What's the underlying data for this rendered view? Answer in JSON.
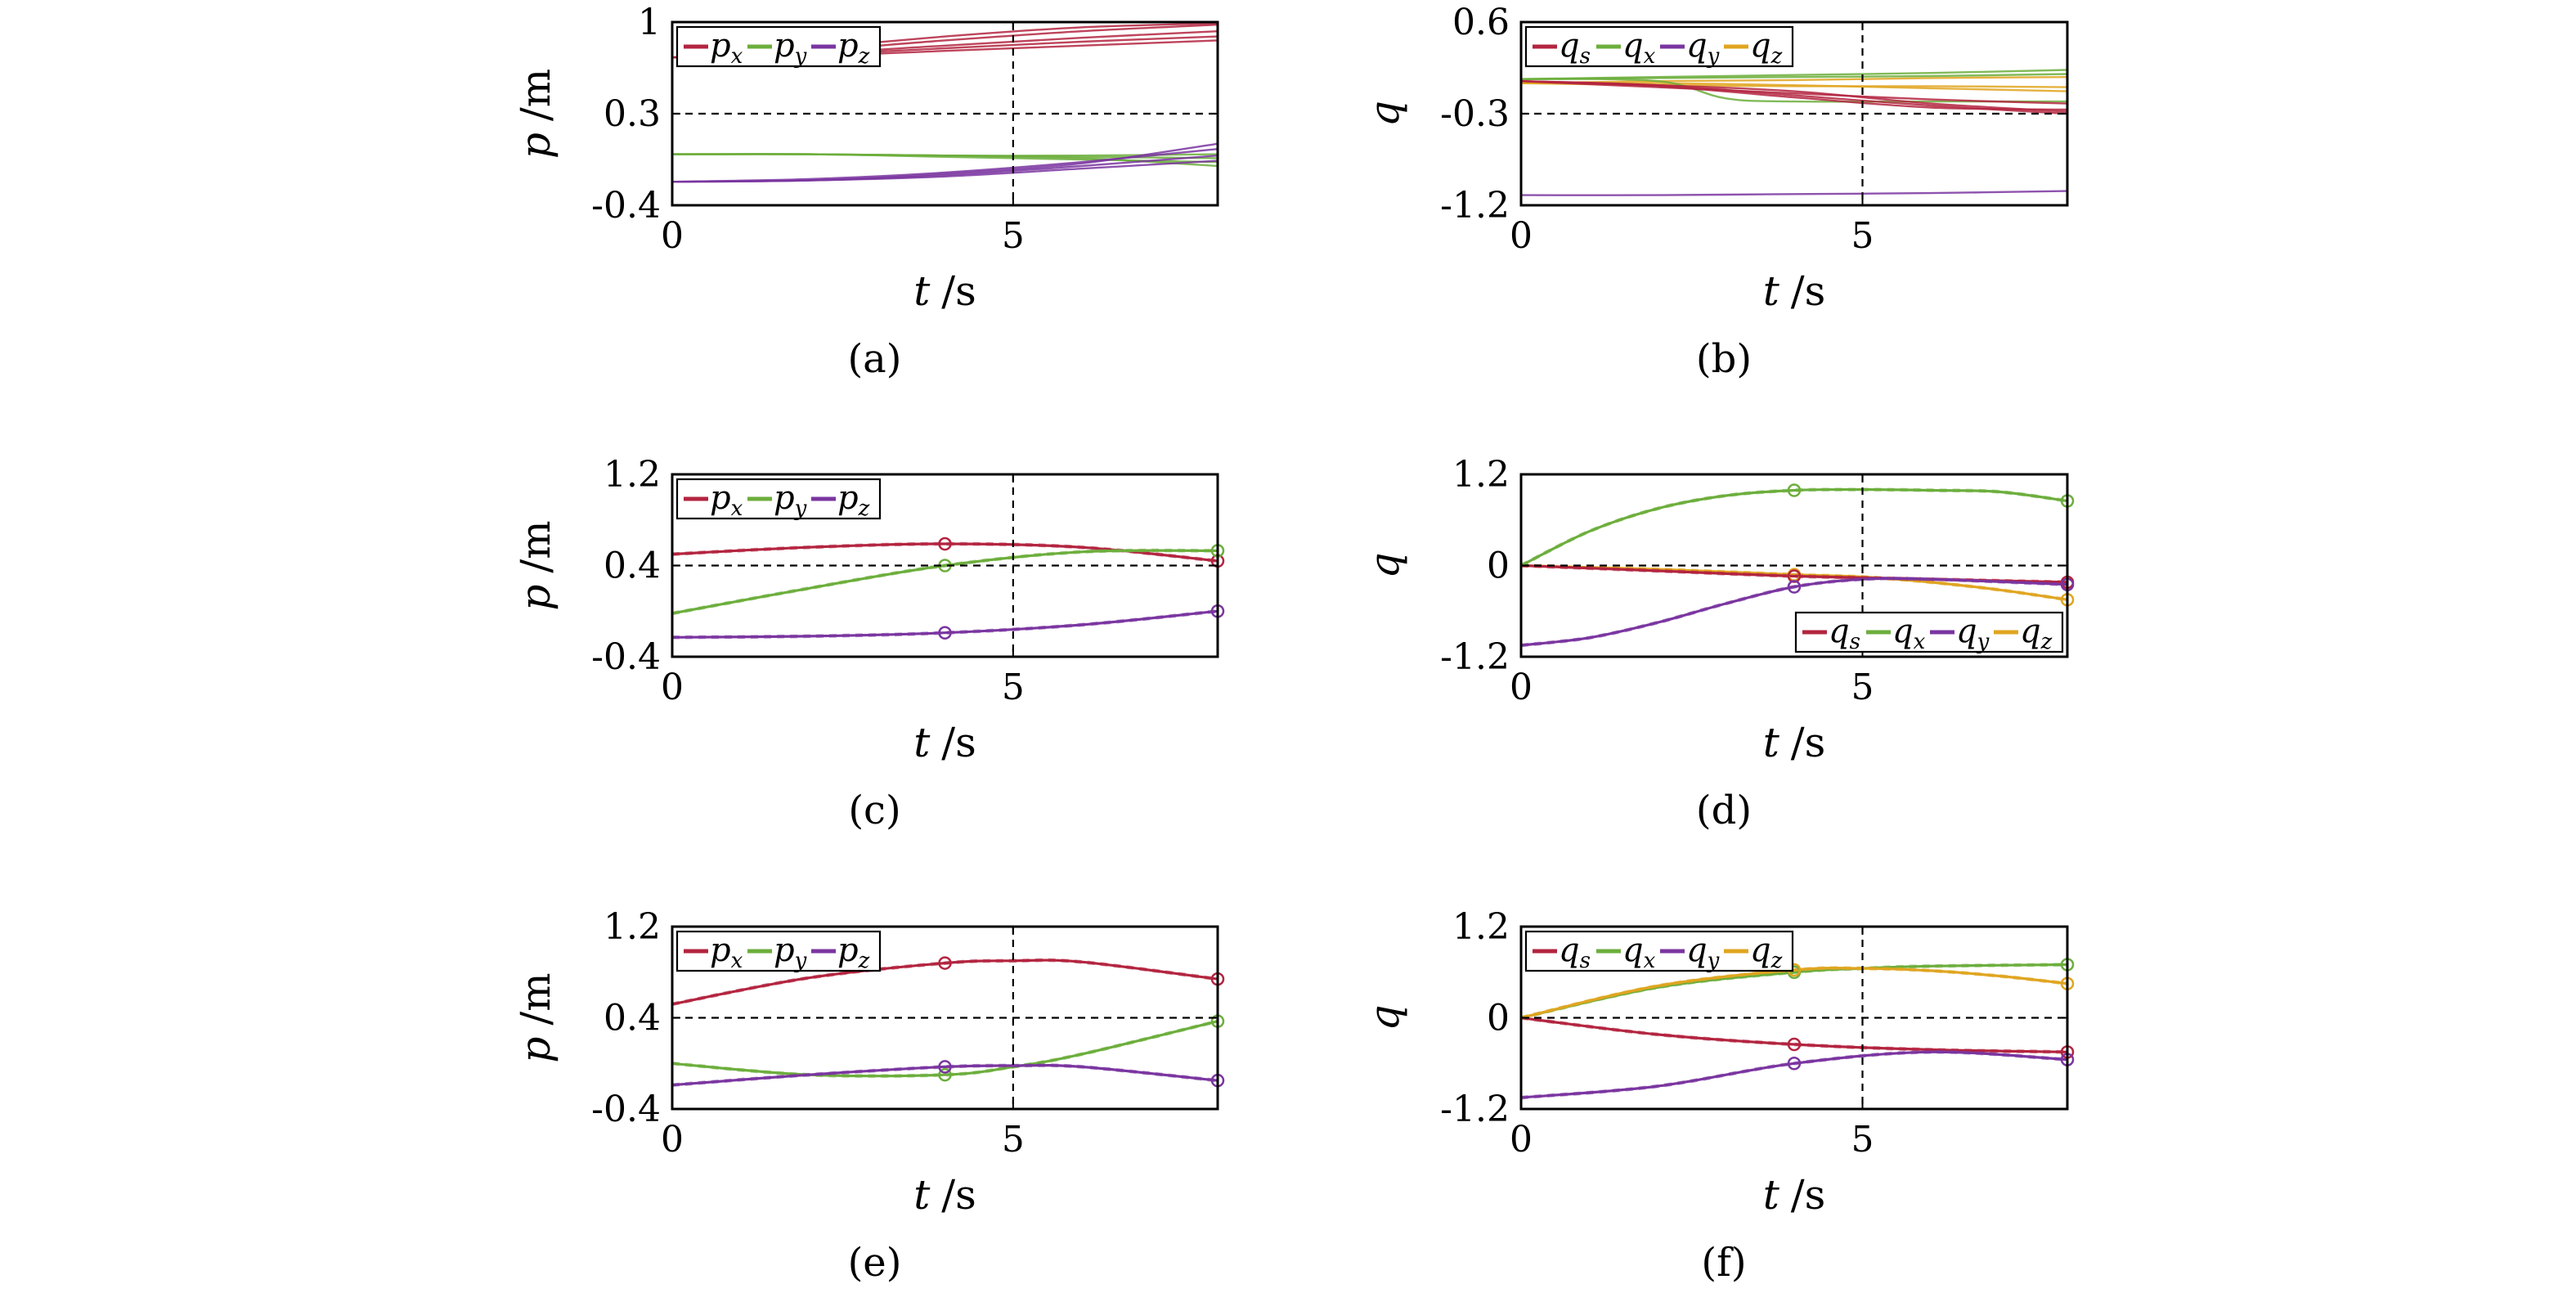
{
  "figure": {
    "colors": {
      "red": "#b3243f",
      "green": "#6cae3c",
      "purple": "#7a35a0",
      "orange": "#e0a520",
      "black": "#000000"
    }
  },
  "chart_data": [
    {
      "id": "a",
      "type": "line",
      "caption": "(a)",
      "xlabel": "t",
      "xunit": "/s",
      "ylabel": "p",
      "yunit": "/m",
      "xlim": [
        0,
        8
      ],
      "ylim": [
        -0.4,
        1.0
      ],
      "xticks": [
        0,
        5
      ],
      "xtick_labels": [
        "0",
        "5"
      ],
      "yticks": [
        1.0,
        0.3,
        -0.4
      ],
      "ytick_labels": [
        "1",
        "0.3",
        "-0.4"
      ],
      "crosshair": {
        "x": 5,
        "y": 0.3
      },
      "legend": {
        "position": "top-left",
        "entries": [
          {
            "base": "p",
            "sub": "x",
            "color": "red"
          },
          {
            "base": "p",
            "sub": "y",
            "color": "green"
          },
          {
            "base": "p",
            "sub": "z",
            "color": "purple"
          }
        ]
      },
      "series": [
        {
          "color": "red",
          "thin": true,
          "x": [
            0,
            2,
            4,
            6,
            8
          ],
          "y": [
            0.73,
            0.74,
            0.78,
            0.82,
            0.86
          ]
        },
        {
          "color": "red",
          "thin": true,
          "x": [
            0,
            2,
            4,
            6,
            8
          ],
          "y": [
            0.73,
            0.76,
            0.82,
            0.88,
            0.93
          ]
        },
        {
          "color": "red",
          "thin": true,
          "x": [
            0,
            2,
            4,
            6,
            8
          ],
          "y": [
            0.73,
            0.78,
            0.86,
            0.93,
            0.98
          ]
        },
        {
          "color": "red",
          "thin": true,
          "x": [
            0,
            2,
            4,
            6,
            8
          ],
          "y": [
            0.73,
            0.8,
            0.89,
            0.96,
            0.99
          ]
        },
        {
          "color": "red",
          "thin": true,
          "x": [
            0,
            2,
            4,
            6,
            8
          ],
          "y": [
            0.73,
            0.75,
            0.8,
            0.85,
            0.89
          ]
        },
        {
          "color": "green",
          "thin": true,
          "x": [
            0,
            2,
            4,
            6,
            8
          ],
          "y": [
            -0.01,
            -0.01,
            -0.02,
            -0.03,
            -0.04
          ]
        },
        {
          "color": "green",
          "thin": true,
          "x": [
            0,
            2,
            4,
            6,
            8
          ],
          "y": [
            -0.01,
            -0.01,
            -0.03,
            -0.05,
            -0.07
          ]
        },
        {
          "color": "green",
          "thin": true,
          "x": [
            0,
            2,
            4,
            6,
            8
          ],
          "y": [
            -0.01,
            -0.01,
            -0.02,
            -0.04,
            -0.1
          ]
        },
        {
          "color": "green",
          "thin": true,
          "x": [
            0,
            2,
            4,
            6,
            8
          ],
          "y": [
            -0.01,
            -0.01,
            -0.02,
            -0.02,
            -0.01
          ]
        },
        {
          "color": "purple",
          "thin": true,
          "x": [
            0,
            2,
            4,
            6,
            8
          ],
          "y": [
            -0.22,
            -0.21,
            -0.17,
            -0.1,
            -0.02
          ]
        },
        {
          "color": "purple",
          "thin": true,
          "x": [
            0,
            2,
            4,
            6,
            8
          ],
          "y": [
            -0.22,
            -0.2,
            -0.15,
            -0.07,
            0.03
          ]
        },
        {
          "color": "purple",
          "thin": true,
          "x": [
            0,
            2,
            4,
            6,
            8
          ],
          "y": [
            -0.22,
            -0.21,
            -0.16,
            -0.08,
            0.07
          ]
        },
        {
          "color": "purple",
          "thin": true,
          "x": [
            0,
            2,
            4,
            6,
            8
          ],
          "y": [
            -0.22,
            -0.21,
            -0.18,
            -0.12,
            -0.06
          ]
        }
      ]
    },
    {
      "id": "b",
      "type": "line",
      "caption": "(b)",
      "xlabel": "t",
      "xunit": "/s",
      "ylabel": "q",
      "yunit": "",
      "xlim": [
        0,
        8
      ],
      "ylim": [
        -1.2,
        0.6
      ],
      "xticks": [
        0,
        5
      ],
      "xtick_labels": [
        "0",
        "5"
      ],
      "yticks": [
        0.6,
        -0.3,
        -1.2
      ],
      "ytick_labels": [
        "0.6",
        "-0.3",
        "-1.2"
      ],
      "crosshair": {
        "x": 5,
        "y": -0.3
      },
      "legend": {
        "position": "top-left",
        "entries": [
          {
            "base": "q",
            "sub": "s",
            "color": "red"
          },
          {
            "base": "q",
            "sub": "x",
            "color": "green"
          },
          {
            "base": "q",
            "sub": "y",
            "color": "purple"
          },
          {
            "base": "q",
            "sub": "z",
            "color": "orange"
          }
        ]
      },
      "series": [
        {
          "color": "orange",
          "thin": true,
          "x": [
            0,
            2,
            4,
            6,
            8
          ],
          "y": [
            0.0,
            0.02,
            0.03,
            0.05,
            0.06
          ]
        },
        {
          "color": "orange",
          "thin": true,
          "x": [
            0,
            2,
            4,
            6,
            8
          ],
          "y": [
            0.0,
            -0.02,
            -0.03,
            -0.03,
            -0.04
          ]
        },
        {
          "color": "orange",
          "thin": true,
          "x": [
            0,
            2,
            4,
            6,
            8
          ],
          "y": [
            0.0,
            0.0,
            -0.02,
            -0.05,
            -0.08
          ]
        },
        {
          "color": "green",
          "thin": true,
          "x": [
            0,
            2,
            4,
            6,
            8
          ],
          "y": [
            0.04,
            0.06,
            0.08,
            0.1,
            0.13
          ]
        },
        {
          "color": "green",
          "thin": true,
          "x": [
            0,
            2,
            4,
            6,
            8
          ],
          "y": [
            0.04,
            0.05,
            0.06,
            0.07,
            0.09
          ]
        },
        {
          "color": "green",
          "thin": true,
          "x": [
            0,
            2,
            3,
            4,
            6,
            8
          ],
          "y": [
            0.04,
            0.02,
            -0.15,
            -0.18,
            -0.18,
            -0.18
          ]
        },
        {
          "color": "red",
          "thin": true,
          "x": [
            0,
            2,
            4,
            6,
            8
          ],
          "y": [
            0.02,
            -0.02,
            -0.12,
            -0.22,
            -0.3
          ]
        },
        {
          "color": "red",
          "thin": true,
          "x": [
            0,
            2,
            4,
            6,
            8
          ],
          "y": [
            0.02,
            -0.04,
            -0.1,
            -0.16,
            -0.2
          ]
        },
        {
          "color": "red",
          "thin": true,
          "x": [
            0,
            2,
            4,
            6,
            8
          ],
          "y": [
            0.02,
            -0.02,
            -0.08,
            -0.2,
            -0.28
          ]
        },
        {
          "color": "red",
          "thin": true,
          "x": [
            0,
            2,
            4,
            6,
            8
          ],
          "y": [
            0.02,
            -0.03,
            -0.14,
            -0.24,
            -0.26
          ]
        },
        {
          "color": "purple",
          "thin": true,
          "x": [
            0,
            2,
            4,
            6,
            8
          ],
          "y": [
            -1.1,
            -1.1,
            -1.09,
            -1.08,
            -1.06
          ]
        }
      ]
    },
    {
      "id": "c",
      "type": "line",
      "caption": "(c)",
      "xlabel": "t",
      "xunit": "/s",
      "ylabel": "p",
      "yunit": "/m",
      "xlim": [
        0,
        8
      ],
      "ylim": [
        -0.4,
        1.2
      ],
      "xticks": [
        0,
        5
      ],
      "xtick_labels": [
        "0",
        "5"
      ],
      "yticks": [
        1.2,
        0.4,
        -0.4
      ],
      "ytick_labels": [
        "1.2",
        "0.4",
        "-0.4"
      ],
      "crosshair": {
        "x": 5,
        "y": 0.4
      },
      "legend": {
        "position": "top-left",
        "entries": [
          {
            "base": "p",
            "sub": "x",
            "color": "red"
          },
          {
            "base": "p",
            "sub": "y",
            "color": "green"
          },
          {
            "base": "p",
            "sub": "z",
            "color": "purple"
          }
        ]
      },
      "series": [
        {
          "color": "red",
          "x": [
            0,
            2,
            4,
            6,
            8
          ],
          "y": [
            0.5,
            0.56,
            0.59,
            0.56,
            0.44
          ],
          "markers": [
            4,
            8
          ]
        },
        {
          "color": "green",
          "x": [
            0,
            2,
            4,
            6,
            8
          ],
          "y": [
            -0.02,
            0.2,
            0.4,
            0.52,
            0.53
          ],
          "markers": [
            4,
            8
          ]
        },
        {
          "color": "purple",
          "x": [
            0,
            2,
            4,
            6,
            8
          ],
          "y": [
            -0.23,
            -0.22,
            -0.19,
            -0.12,
            0.0
          ],
          "markers": [
            4,
            8
          ]
        }
      ]
    },
    {
      "id": "d",
      "type": "line",
      "caption": "(d)",
      "xlabel": "t",
      "xunit": "/s",
      "ylabel": "q",
      "yunit": "",
      "xlim": [
        0,
        8
      ],
      "ylim": [
        -1.2,
        1.2
      ],
      "xticks": [
        0,
        5
      ],
      "xtick_labels": [
        "0",
        "5"
      ],
      "yticks": [
        1.2,
        0,
        -1.2
      ],
      "ytick_labels": [
        "1.2",
        "0",
        "-1.2"
      ],
      "crosshair": {
        "x": 5,
        "y": 0
      },
      "legend": {
        "position": "bottom-right",
        "entries": [
          {
            "base": "q",
            "sub": "s",
            "color": "red"
          },
          {
            "base": "q",
            "sub": "x",
            "color": "green"
          },
          {
            "base": "q",
            "sub": "y",
            "color": "purple"
          },
          {
            "base": "q",
            "sub": "z",
            "color": "orange"
          }
        ]
      },
      "series": [
        {
          "color": "orange",
          "x": [
            0,
            2,
            4,
            5,
            6,
            7,
            8
          ],
          "y": [
            0,
            -0.05,
            -0.12,
            -0.15,
            -0.22,
            -0.32,
            -0.45
          ],
          "markers": [
            4,
            8
          ]
        },
        {
          "color": "red",
          "x": [
            0,
            2,
            4,
            6,
            8
          ],
          "y": [
            0,
            -0.07,
            -0.14,
            -0.18,
            -0.22
          ],
          "markers": [
            4,
            8
          ]
        },
        {
          "color": "green",
          "x": [
            0,
            1,
            2,
            3,
            4,
            5,
            6,
            7,
            8
          ],
          "y": [
            0,
            0.45,
            0.75,
            0.92,
            0.99,
            1.0,
            0.99,
            0.97,
            0.85
          ],
          "markers": [
            4,
            8
          ]
        },
        {
          "color": "purple",
          "x": [
            0,
            1,
            2,
            3,
            4,
            5,
            6,
            8
          ],
          "y": [
            -1.05,
            -0.95,
            -0.75,
            -0.5,
            -0.28,
            -0.18,
            -0.18,
            -0.25
          ],
          "markers": [
            4,
            8
          ]
        }
      ]
    },
    {
      "id": "e",
      "type": "line",
      "caption": "(e)",
      "xlabel": "t",
      "xunit": "/s",
      "ylabel": "p",
      "yunit": "/m",
      "xlim": [
        0,
        8
      ],
      "ylim": [
        -0.4,
        1.2
      ],
      "xticks": [
        0,
        5
      ],
      "xtick_labels": [
        "0",
        "5"
      ],
      "yticks": [
        1.2,
        0.4,
        -0.4
      ],
      "ytick_labels": [
        "1.2",
        "0.4",
        "-0.4"
      ],
      "crosshair": {
        "x": 5,
        "y": 0.4
      },
      "legend": {
        "position": "top-left",
        "entries": [
          {
            "base": "p",
            "sub": "x",
            "color": "red"
          },
          {
            "base": "p",
            "sub": "y",
            "color": "green"
          },
          {
            "base": "p",
            "sub": "z",
            "color": "purple"
          }
        ]
      },
      "series": [
        {
          "color": "red",
          "x": [
            0,
            2,
            4,
            5,
            6,
            8
          ],
          "y": [
            0.52,
            0.75,
            0.88,
            0.9,
            0.89,
            0.74
          ],
          "markers": [
            4,
            8
          ]
        },
        {
          "color": "green",
          "x": [
            0,
            2,
            4,
            5,
            6,
            8
          ],
          "y": [
            0.0,
            -0.1,
            -0.1,
            -0.03,
            0.08,
            0.37
          ],
          "markers": [
            4,
            8
          ]
        },
        {
          "color": "purple",
          "x": [
            0,
            2,
            4,
            5,
            6,
            8
          ],
          "y": [
            -0.19,
            -0.1,
            -0.03,
            -0.02,
            -0.03,
            -0.15
          ],
          "markers": [
            4,
            8
          ]
        }
      ]
    },
    {
      "id": "f",
      "type": "line",
      "caption": "(f)",
      "xlabel": "t",
      "xunit": "/s",
      "ylabel": "q",
      "yunit": "",
      "xlim": [
        0,
        8
      ],
      "ylim": [
        -1.2,
        1.2
      ],
      "xticks": [
        0,
        5
      ],
      "xtick_labels": [
        "0",
        "5"
      ],
      "yticks": [
        1.2,
        0,
        -1.2
      ],
      "ytick_labels": [
        "1.2",
        "0",
        "-1.2"
      ],
      "crosshair": {
        "x": 5,
        "y": 0
      },
      "legend": {
        "position": "top-left",
        "entries": [
          {
            "base": "q",
            "sub": "s",
            "color": "red"
          },
          {
            "base": "q",
            "sub": "x",
            "color": "green"
          },
          {
            "base": "q",
            "sub": "y",
            "color": "purple"
          },
          {
            "base": "q",
            "sub": "z",
            "color": "orange"
          }
        ]
      },
      "series": [
        {
          "color": "red",
          "x": [
            0,
            2,
            4,
            6,
            8
          ],
          "y": [
            0,
            -0.22,
            -0.35,
            -0.42,
            -0.45
          ],
          "markers": [
            4,
            8
          ]
        },
        {
          "color": "green",
          "x": [
            0,
            2,
            4,
            5,
            6,
            8
          ],
          "y": [
            0,
            0.4,
            0.6,
            0.65,
            0.68,
            0.7
          ],
          "markers": [
            4,
            8
          ]
        },
        {
          "color": "orange",
          "x": [
            0,
            2,
            4,
            5,
            6,
            7,
            8
          ],
          "y": [
            0,
            0.42,
            0.63,
            0.65,
            0.62,
            0.55,
            0.45
          ],
          "markers": [
            4,
            8
          ]
        },
        {
          "color": "purple",
          "x": [
            0,
            2,
            4,
            6,
            8
          ],
          "y": [
            -1.05,
            -0.9,
            -0.6,
            -0.45,
            -0.55
          ],
          "markers": [
            4,
            8
          ]
        }
      ]
    }
  ]
}
